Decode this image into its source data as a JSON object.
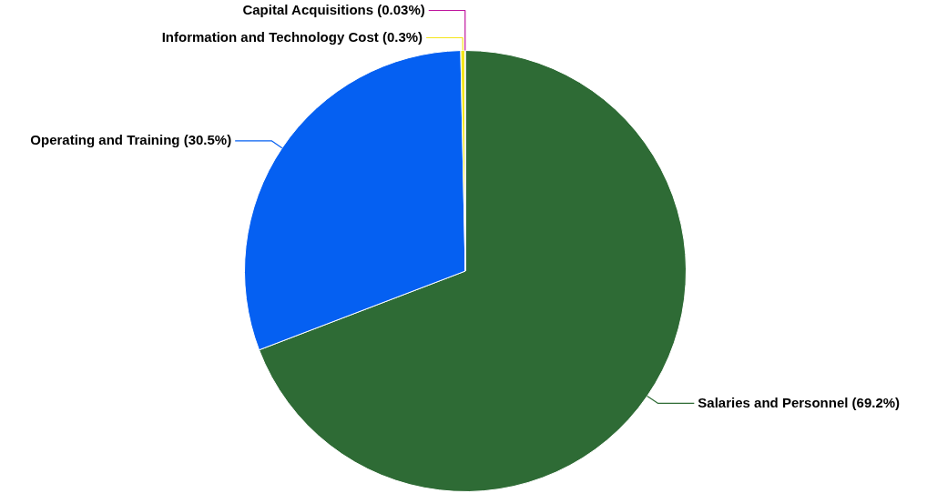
{
  "chart_data": {
    "type": "pie",
    "categories": [
      "Salaries and Personnel",
      "Operating and Training",
      "Information and Technology Cost",
      "Capital Acquisitions"
    ],
    "values": [
      69.2,
      30.5,
      0.3,
      0.03
    ],
    "colors": [
      "#2e6b35",
      "#0560f2",
      "#f4e51a",
      "#c0179f"
    ],
    "value_labels": [
      "(69.2%)",
      "(30.5%)",
      "(0.3%)",
      "(0.03%)"
    ],
    "legend": false
  }
}
